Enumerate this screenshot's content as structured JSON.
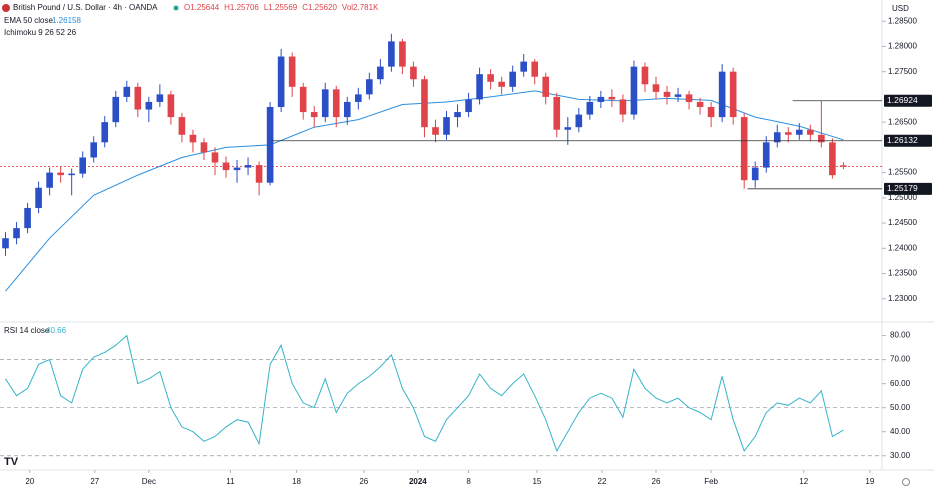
{
  "header": {
    "symbol": "British Pound / U.S. Dollar · 4h · OANDA",
    "ohlc": [
      "O1.25644",
      "H1.25706",
      "L1.25569",
      "C1.25620",
      "Vol2.781K"
    ],
    "ema_label": "EMA 50 close",
    "ema_value": "1.26158",
    "ichimoku_label": "Ichimoku 9 26 52 26",
    "rsi_label": "RSI 14 close",
    "rsi_value": "40.66",
    "currency": "USD"
  },
  "chart_data": [
    {
      "type": "candlestick",
      "up_color": "#2a4fc7",
      "down_color": "#e0434a",
      "x": [
        0,
        1,
        2,
        3,
        4,
        5,
        6,
        7,
        8,
        9,
        10,
        11,
        12,
        13,
        14,
        15,
        16,
        17,
        18,
        19,
        20,
        21,
        22,
        23,
        24,
        25,
        26,
        27,
        28,
        29,
        30,
        31,
        32,
        33,
        34,
        35,
        36,
        37,
        38,
        39,
        40,
        41,
        42,
        43,
        44,
        45,
        46,
        47,
        48,
        49,
        50,
        51,
        52,
        53,
        54,
        55,
        56,
        57,
        58,
        59,
        60,
        61,
        62,
        63,
        64,
        65,
        66,
        67,
        68,
        69,
        70,
        71,
        72,
        73,
        74,
        75,
        76
      ],
      "open": [
        1.24,
        1.242,
        1.244,
        1.248,
        1.252,
        1.255,
        1.2545,
        1.2548,
        1.258,
        1.261,
        1.265,
        1.27,
        1.272,
        1.2675,
        1.269,
        1.2705,
        1.266,
        1.2625,
        1.261,
        1.259,
        1.257,
        1.2555,
        1.256,
        1.2565,
        1.253,
        1.268,
        1.278,
        1.272,
        1.267,
        1.266,
        1.2715,
        1.266,
        1.269,
        1.2705,
        1.2735,
        1.276,
        1.281,
        1.276,
        1.2735,
        1.264,
        1.2625,
        1.266,
        1.267,
        1.2695,
        1.2745,
        1.273,
        1.272,
        1.275,
        1.277,
        1.274,
        1.27,
        1.2635,
        1.264,
        1.2665,
        1.269,
        1.27,
        1.2695,
        1.2665,
        1.276,
        1.2725,
        1.271,
        1.27,
        1.2705,
        1.269,
        1.268,
        1.266,
        1.275,
        1.266,
        1.2535,
        1.256,
        1.261,
        1.263,
        1.2625,
        1.2635,
        1.2625,
        1.261,
        1.25644
      ],
      "high": [
        1.2432,
        1.2452,
        1.249,
        1.2532,
        1.256,
        1.2562,
        1.2558,
        1.2592,
        1.2622,
        1.2662,
        1.2712,
        1.2732,
        1.2728,
        1.27,
        1.2725,
        1.2712,
        1.2668,
        1.2635,
        1.2618,
        1.26,
        1.2582,
        1.2575,
        1.258,
        1.2572,
        1.269,
        1.2795,
        1.2788,
        1.2728,
        1.2682,
        1.2728,
        1.2722,
        1.27,
        1.2718,
        1.2748,
        1.2775,
        1.2825,
        1.2815,
        1.277,
        1.2742,
        1.2655,
        1.2672,
        1.2685,
        1.2708,
        1.2758,
        1.2755,
        1.274,
        1.2762,
        1.2785,
        1.2775,
        1.2748,
        1.2708,
        1.266,
        1.2678,
        1.2702,
        1.2712,
        1.2715,
        1.2705,
        1.2772,
        1.2768,
        1.274,
        1.2722,
        1.2718,
        1.2712,
        1.2698,
        1.269,
        1.2765,
        1.2758,
        1.2668,
        1.2572,
        1.2622,
        1.2645,
        1.264,
        1.2648,
        1.2645,
        1.2692,
        1.2618,
        1.25706
      ],
      "low": [
        1.2385,
        1.2408,
        1.243,
        1.247,
        1.2505,
        1.253,
        1.2505,
        1.254,
        1.257,
        1.26,
        1.264,
        1.269,
        1.266,
        1.265,
        1.268,
        1.2645,
        1.261,
        1.259,
        1.2575,
        1.2545,
        1.254,
        1.253,
        1.2545,
        1.2505,
        1.2525,
        1.267,
        1.27,
        1.2655,
        1.264,
        1.265,
        1.264,
        1.2645,
        1.2675,
        1.2695,
        1.2725,
        1.275,
        1.2745,
        1.272,
        1.262,
        1.261,
        1.2615,
        1.264,
        1.266,
        1.2685,
        1.2715,
        1.2705,
        1.271,
        1.274,
        1.2725,
        1.2685,
        1.262,
        1.2605,
        1.263,
        1.2655,
        1.2678,
        1.268,
        1.265,
        1.2655,
        1.271,
        1.2695,
        1.2685,
        1.269,
        1.2675,
        1.2665,
        1.264,
        1.265,
        1.2645,
        1.2518,
        1.252,
        1.255,
        1.26,
        1.261,
        1.2615,
        1.2612,
        1.26,
        1.2538,
        1.25569
      ],
      "close": [
        1.242,
        1.244,
        1.248,
        1.252,
        1.255,
        1.2545,
        1.2548,
        1.258,
        1.261,
        1.265,
        1.27,
        1.272,
        1.2675,
        1.269,
        1.2705,
        1.266,
        1.2625,
        1.261,
        1.259,
        1.257,
        1.2555,
        1.256,
        1.2565,
        1.253,
        1.268,
        1.278,
        1.272,
        1.267,
        1.266,
        1.2715,
        1.266,
        1.269,
        1.2705,
        1.2735,
        1.276,
        1.281,
        1.276,
        1.2735,
        1.264,
        1.2625,
        1.266,
        1.267,
        1.2695,
        1.2745,
        1.273,
        1.272,
        1.275,
        1.277,
        1.274,
        1.27,
        1.2635,
        1.264,
        1.2665,
        1.269,
        1.27,
        1.2695,
        1.2665,
        1.276,
        1.2725,
        1.271,
        1.27,
        1.2705,
        1.269,
        1.268,
        1.266,
        1.275,
        1.266,
        1.2535,
        1.256,
        1.261,
        1.263,
        1.2625,
        1.2635,
        1.2625,
        1.261,
        1.2545,
        1.2562
      ],
      "ema": {
        "color": "#2b8fe0",
        "x": [
          0,
          4,
          8,
          12,
          16,
          20,
          24,
          28,
          32,
          36,
          40,
          44,
          48,
          52,
          56,
          60,
          64,
          68,
          72,
          76
        ],
        "values": [
          1.2315,
          1.242,
          1.2505,
          1.2545,
          1.258,
          1.26,
          1.2605,
          1.264,
          1.2655,
          1.2685,
          1.269,
          1.27,
          1.2712,
          1.2695,
          1.2692,
          1.2697,
          1.2693,
          1.266,
          1.2642,
          1.2615
        ]
      },
      "levels": [
        1.26924,
        1.26132,
        1.25179
      ],
      "level_from": [
        71.4,
        24.1,
        67.3
      ],
      "last_price": 1.2562,
      "xlim": [
        -0.5,
        79.5
      ],
      "ylim": [
        1.2258,
        1.2892
      ],
      "yticks": [
        {
          "value": 1.285,
          "label": "1.28500"
        },
        {
          "value": 1.28,
          "label": "1.28000"
        },
        {
          "value": 1.275,
          "label": "1.27500"
        },
        {
          "value": 1.265,
          "label": "1.26500"
        },
        {
          "value": 1.255,
          "label": "1.25500"
        },
        {
          "value": 1.25,
          "label": "1.25000"
        },
        {
          "value": 1.245,
          "label": "1.24500"
        },
        {
          "value": 1.24,
          "label": "1.24000"
        },
        {
          "value": 1.235,
          "label": "1.23500"
        },
        {
          "value": 1.23,
          "label": "1.23000"
        }
      ]
    },
    {
      "type": "line",
      "color": "#36b3c9",
      "x": [
        0,
        1,
        2,
        3,
        4,
        5,
        6,
        7,
        8,
        9,
        10,
        11,
        12,
        13,
        14,
        15,
        16,
        17,
        18,
        19,
        20,
        21,
        22,
        23,
        24,
        25,
        26,
        27,
        28,
        29,
        30,
        31,
        32,
        33,
        34,
        35,
        36,
        37,
        38,
        39,
        40,
        41,
        42,
        43,
        44,
        45,
        46,
        47,
        48,
        49,
        50,
        51,
        52,
        53,
        54,
        55,
        56,
        57,
        58,
        59,
        60,
        61,
        62,
        63,
        64,
        65,
        66,
        67,
        68,
        69,
        70,
        71,
        72,
        73,
        74,
        75,
        76
      ],
      "values": [
        62,
        55,
        58,
        68,
        70,
        55,
        52,
        66,
        71,
        73,
        76,
        80,
        60,
        62,
        65,
        50,
        42,
        40,
        36,
        38,
        42,
        45,
        44,
        35,
        68,
        76,
        60,
        52,
        50,
        62,
        48,
        56,
        60,
        63,
        67,
        72,
        58,
        50,
        38,
        36,
        45,
        50,
        55,
        64,
        58,
        55,
        60,
        64,
        55,
        45,
        32,
        40,
        48,
        54,
        56,
        54,
        46,
        66,
        58,
        54,
        52,
        54,
        50,
        48,
        45,
        63,
        45,
        32,
        38,
        48,
        52,
        51,
        54,
        52,
        57,
        38,
        40.66
      ],
      "guides": [
        70,
        50,
        30
      ],
      "xlim": [
        -0.5,
        79.5
      ],
      "ylim": [
        24.9,
        84.4
      ],
      "yticks": [
        {
          "value": 80,
          "label": "80.00"
        },
        {
          "value": 70,
          "label": "70.00"
        },
        {
          "value": 60,
          "label": "60.00"
        },
        {
          "value": 50,
          "label": "50.00"
        },
        {
          "value": 40,
          "label": "40.00"
        },
        {
          "value": 30,
          "label": "30.00"
        }
      ],
      "xticks": [
        {
          "value": 2.2,
          "label": "20"
        },
        {
          "value": 8.1,
          "label": "27"
        },
        {
          "value": 13.0,
          "label": "Dec"
        },
        {
          "value": 20.4,
          "label": "11"
        },
        {
          "value": 26.4,
          "label": "18"
        },
        {
          "value": 32.5,
          "label": "26"
        },
        {
          "value": 37.4,
          "label": "2024"
        },
        {
          "value": 42.0,
          "label": "8"
        },
        {
          "value": 48.2,
          "label": "15"
        },
        {
          "value": 54.1,
          "label": "22"
        },
        {
          "value": 59.0,
          "label": "26"
        },
        {
          "value": 64.0,
          "label": "Feb"
        },
        {
          "value": 72.4,
          "label": "12"
        },
        {
          "value": 78.4,
          "label": "19"
        }
      ]
    }
  ]
}
